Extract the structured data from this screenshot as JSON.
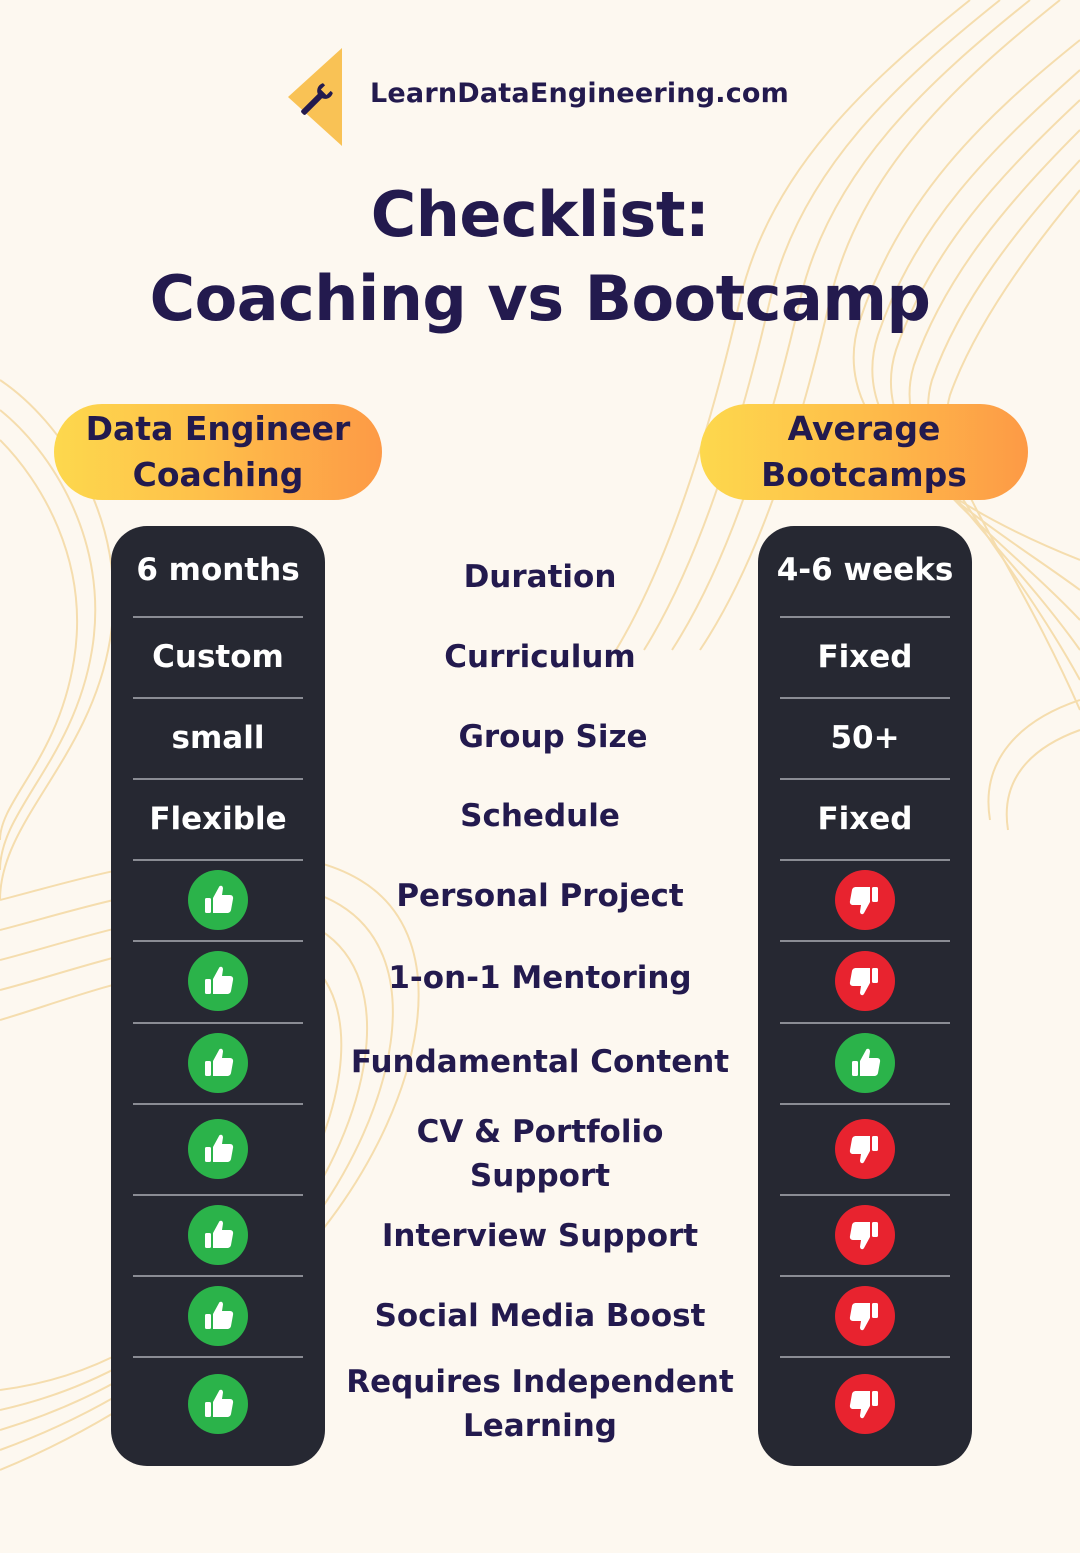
{
  "header": {
    "site": "LearnDataEngineering.com",
    "title_line1": "Checklist:",
    "title_line2": "Coaching vs Bootcamp"
  },
  "columns": {
    "left": {
      "line1": "Data Engineer",
      "line2": "Coaching"
    },
    "right": {
      "line1": "Average",
      "line2": "Bootcamps"
    }
  },
  "rows": [
    {
      "label": "Duration",
      "left": "6 months",
      "right": "4-6 weeks"
    },
    {
      "label": "Curriculum",
      "left": "Custom",
      "right": "Fixed"
    },
    {
      "label": "Group Size",
      "left": "small",
      "right": "50+"
    },
    {
      "label": "Schedule",
      "left": "Flexible",
      "right": "Fixed"
    },
    {
      "label": "Personal Project",
      "left": "thumbs-up",
      "right": "thumbs-down"
    },
    {
      "label": "1-on-1 Mentoring",
      "left": "thumbs-up",
      "right": "thumbs-down"
    },
    {
      "label": "Fundamental Content",
      "left": "thumbs-up",
      "right": "thumbs-up"
    },
    {
      "label": "CV & Portfolio Support",
      "left": "thumbs-up",
      "right": "thumbs-down"
    },
    {
      "label": "Interview Support",
      "left": "thumbs-up",
      "right": "thumbs-down"
    },
    {
      "label": "Social Media Boost",
      "left": "thumbs-up",
      "right": "thumbs-down"
    },
    {
      "label": "Requires Independent Learning",
      "left": "thumbs-up",
      "right": "thumbs-down"
    }
  ],
  "colors": {
    "text": "#231a4e",
    "column_bg": "#262832",
    "thumbs_up": "#2bb34a",
    "thumbs_down": "#e8232f",
    "pill_start": "#fdd84d",
    "pill_end": "#fd9a46"
  }
}
